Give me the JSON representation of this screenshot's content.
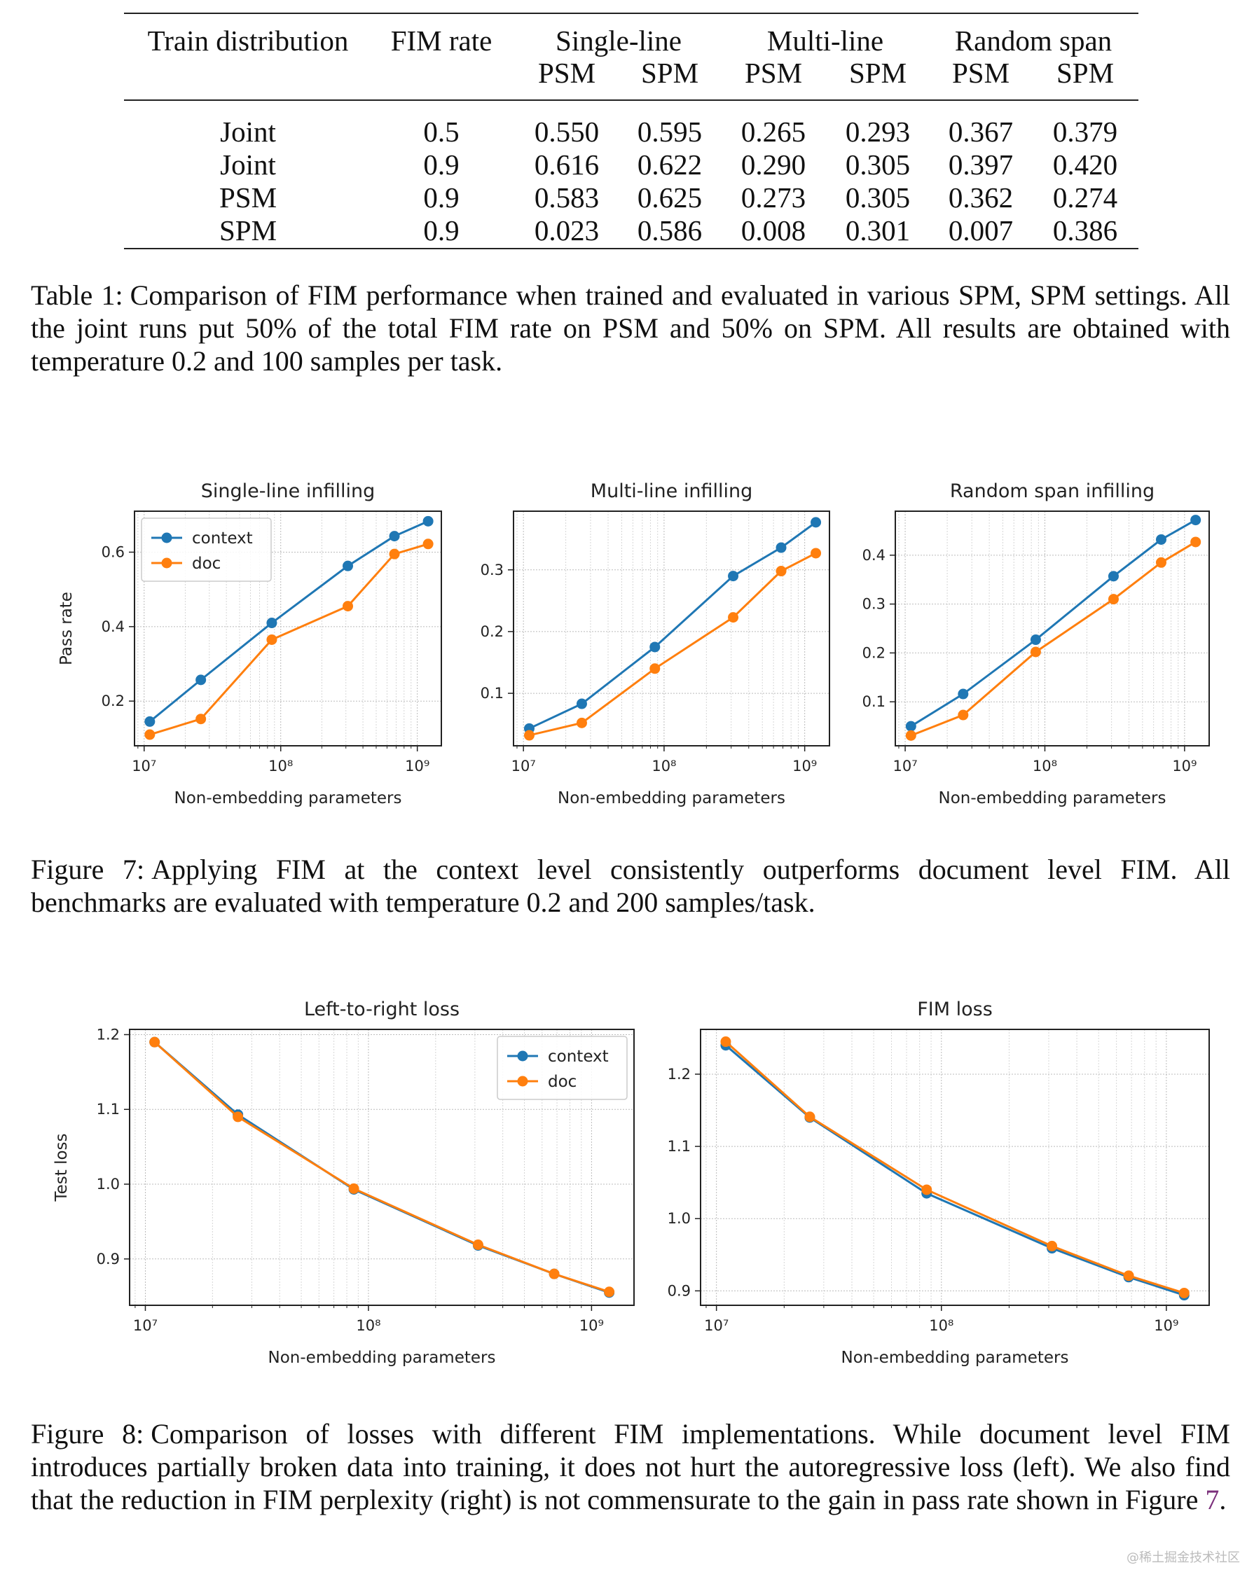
{
  "table": {
    "header_row1": [
      "Train distribution",
      "FIM rate",
      "Single-line",
      "Multi-line",
      "Random span"
    ],
    "header_row2": [
      "PSM",
      "SPM",
      "PSM",
      "SPM",
      "PSM",
      "SPM"
    ],
    "rows": [
      [
        "Joint",
        "0.5",
        "0.550",
        "0.595",
        "0.265",
        "0.293",
        "0.367",
        "0.379"
      ],
      [
        "Joint",
        "0.9",
        "0.616",
        "0.622",
        "0.290",
        "0.305",
        "0.397",
        "0.420"
      ],
      [
        "PSM",
        "0.9",
        "0.583",
        "0.625",
        "0.273",
        "0.305",
        "0.362",
        "0.274"
      ],
      [
        "SPM",
        "0.9",
        "0.023",
        "0.586",
        "0.008",
        "0.301",
        "0.007",
        "0.386"
      ]
    ],
    "caption_label": "Table 1:",
    "caption_text": "Comparison of FIM performance when trained and evaluated in various SPM, SPM settings. All the joint runs put 50% of the total FIM rate on PSM and 50% on SPM. All results are obtained with temperature 0.2 and 100 samples per task."
  },
  "figure7": {
    "caption_label": "Figure 7:",
    "caption_text": "Applying FIM at the context level consistently outperforms document level FIM. All benchmarks are evaluated with temperature 0.2 and 200 samples/task."
  },
  "figure8": {
    "caption_label": "Figure 8:",
    "caption_text": "Comparison of losses with different FIM implementations. While document level FIM introduces partially broken data into training, it does not hurt the autoregressive loss (left). We also find that the reduction in FIM perplexity (right) is not commensurate to the gain in pass rate shown in Figure",
    "caption_ref": "7",
    "caption_end": "."
  },
  "watermark": "@稀土掘金技术社区",
  "colors": {
    "context": "#1f77b4",
    "doc": "#ff7f0e"
  },
  "chart_data": [
    {
      "id": "single-line",
      "type": "line",
      "title": "Single-line infilling",
      "xscale": "log",
      "xlabel": "Non-embedding parameters",
      "ylabel": "Pass rate",
      "xlim": [
        8500000.0,
        1500000000.0
      ],
      "ylim": [
        0.08,
        0.71
      ],
      "yticks": [
        0.2,
        0.4,
        0.6
      ],
      "ytick_labels": [
        "0.2",
        "0.4",
        "0.6"
      ],
      "legend": "top-left",
      "x": [
        11000000.0,
        26000000.0,
        86000000.0,
        310000000.0,
        680000000.0,
        1200000000.0
      ],
      "series": [
        {
          "name": "context",
          "values": [
            0.145,
            0.257,
            0.41,
            0.563,
            0.643,
            0.683
          ]
        },
        {
          "name": "doc",
          "values": [
            0.11,
            0.152,
            0.365,
            0.455,
            0.595,
            0.622
          ]
        }
      ]
    },
    {
      "id": "multi-line",
      "type": "line",
      "title": "Multi-line infilling",
      "xscale": "log",
      "xlabel": "Non-embedding parameters",
      "ylabel": "",
      "xlim": [
        8500000.0,
        1500000000.0
      ],
      "ylim": [
        0.015,
        0.395
      ],
      "yticks": [
        0.1,
        0.2,
        0.3
      ],
      "ytick_labels": [
        "0.1",
        "0.2",
        "0.3"
      ],
      "legend": "none",
      "x": [
        11000000.0,
        26000000.0,
        86000000.0,
        310000000.0,
        680000000.0,
        1200000000.0
      ],
      "series": [
        {
          "name": "context",
          "values": [
            0.043,
            0.083,
            0.175,
            0.29,
            0.336,
            0.377
          ]
        },
        {
          "name": "doc",
          "values": [
            0.032,
            0.052,
            0.14,
            0.223,
            0.298,
            0.327
          ]
        }
      ]
    },
    {
      "id": "random-span",
      "type": "line",
      "title": "Random span infilling",
      "xscale": "log",
      "xlabel": "Non-embedding parameters",
      "ylabel": "",
      "xlim": [
        8500000.0,
        1500000000.0
      ],
      "ylim": [
        0.01,
        0.49
      ],
      "yticks": [
        0.1,
        0.2,
        0.3,
        0.4
      ],
      "ytick_labels": [
        "0.1",
        "0.2",
        "0.3",
        "0.4"
      ],
      "legend": "none",
      "x": [
        11000000.0,
        26000000.0,
        86000000.0,
        310000000.0,
        680000000.0,
        1200000000.0
      ],
      "series": [
        {
          "name": "context",
          "values": [
            0.05,
            0.116,
            0.227,
            0.357,
            0.432,
            0.472
          ]
        },
        {
          "name": "doc",
          "values": [
            0.031,
            0.073,
            0.202,
            0.31,
            0.385,
            0.427
          ]
        }
      ]
    },
    {
      "id": "ltr-loss",
      "type": "line",
      "title": "Left-to-right loss",
      "xscale": "log",
      "xlabel": "Non-embedding parameters",
      "ylabel": "Test loss",
      "xlim": [
        8500000.0,
        1550000000.0
      ],
      "ylim": [
        0.838,
        1.207
      ],
      "yticks": [
        0.9,
        1.0,
        1.1,
        1.2
      ],
      "ytick_labels": [
        "0.9",
        "1.0",
        "1.1",
        "1.2"
      ],
      "legend": "top-right",
      "x": [
        11000000.0,
        26000000.0,
        86000000.0,
        310000000.0,
        680000000.0,
        1200000000.0
      ],
      "series": [
        {
          "name": "context",
          "values": [
            1.19,
            1.093,
            0.993,
            0.918,
            0.88,
            0.855
          ]
        },
        {
          "name": "doc",
          "values": [
            1.19,
            1.09,
            0.994,
            0.919,
            0.88,
            0.856
          ]
        }
      ]
    },
    {
      "id": "fim-loss",
      "type": "line",
      "title": "FIM loss",
      "xscale": "log",
      "xlabel": "Non-embedding parameters",
      "ylabel": "",
      "xlim": [
        8500000.0,
        1550000000.0
      ],
      "ylim": [
        0.88,
        1.262
      ],
      "yticks": [
        0.9,
        1.0,
        1.1,
        1.2
      ],
      "ytick_labels": [
        "0.9",
        "1.0",
        "1.1",
        "1.2"
      ],
      "legend": "none",
      "x": [
        11000000.0,
        26000000.0,
        86000000.0,
        310000000.0,
        680000000.0,
        1200000000.0
      ],
      "series": [
        {
          "name": "context",
          "values": [
            1.24,
            1.14,
            1.035,
            0.959,
            0.919,
            0.894
          ]
        },
        {
          "name": "doc",
          "values": [
            1.245,
            1.141,
            1.04,
            0.962,
            0.921,
            0.897
          ]
        }
      ]
    }
  ]
}
